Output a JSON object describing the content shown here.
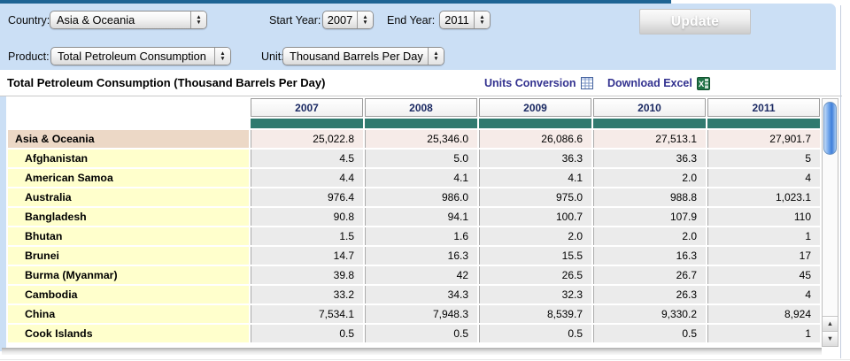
{
  "filters": {
    "country_label": "Country:",
    "country_value": "Asia & Oceania",
    "start_year_label": "Start Year:",
    "start_year_value": "2007",
    "end_year_label": "End Year:",
    "end_year_value": "2011",
    "product_label": "Product:",
    "product_value": "Total Petroleum Consumption",
    "unit_label": "Unit:",
    "unit_value": "Thousand Barrels Per Day",
    "update_label": "Update"
  },
  "report": {
    "title": "Total Petroleum Consumption (Thousand Barrels Per Day)",
    "units_conversion_label": "Units Conversion",
    "download_excel_label": "Download Excel"
  },
  "table": {
    "year_columns": [
      "2007",
      "2008",
      "2009",
      "2010",
      "2011"
    ],
    "rows": [
      {
        "label": "Asia & Oceania",
        "type": "region",
        "values": [
          "25,022.8",
          "25,346.0",
          "26,086.6",
          "27,513.1",
          "27,901.7"
        ]
      },
      {
        "label": "Afghanistan",
        "type": "country",
        "values": [
          "4.5",
          "5.0",
          "36.3",
          "36.3",
          "5"
        ]
      },
      {
        "label": "American Samoa",
        "type": "country",
        "values": [
          "4.4",
          "4.1",
          "4.1",
          "2.0",
          "4"
        ]
      },
      {
        "label": "Australia",
        "type": "country",
        "values": [
          "976.4",
          "986.0",
          "975.0",
          "988.8",
          "1,023.1"
        ]
      },
      {
        "label": "Bangladesh",
        "type": "country",
        "values": [
          "90.8",
          "94.1",
          "100.7",
          "107.9",
          "110"
        ]
      },
      {
        "label": "Bhutan",
        "type": "country",
        "values": [
          "1.5",
          "1.6",
          "2.0",
          "2.0",
          "1"
        ]
      },
      {
        "label": "Brunei",
        "type": "country",
        "values": [
          "14.7",
          "16.3",
          "15.5",
          "16.3",
          "17"
        ]
      },
      {
        "label": "Burma (Myanmar)",
        "type": "country",
        "values": [
          "39.8",
          "42",
          "26.5",
          "26.7",
          "45"
        ]
      },
      {
        "label": "Cambodia",
        "type": "country",
        "values": [
          "33.2",
          "34.3",
          "32.3",
          "26.3",
          "4"
        ]
      },
      {
        "label": "China",
        "type": "country",
        "values": [
          "7,534.1",
          "7,948.3",
          "8,539.7",
          "9,330.2",
          "8,924"
        ]
      },
      {
        "label": "Cook Islands",
        "type": "country",
        "values": [
          "0.5",
          "0.5",
          "0.5",
          "0.5",
          "1"
        ]
      }
    ]
  },
  "scrollbar": {
    "up_glyph": "▲",
    "down_glyph": "▼"
  },
  "colors": {
    "topbar": "#1e6494",
    "panel": "#cbdff5",
    "teal": "#2f7a6f",
    "region_label": "#ecd8c6",
    "region_data": "#f6ebe8",
    "country_label": "#ffffcc",
    "country_data": "#ebebeb",
    "link": "#32318f",
    "year_text": "#1b2a63",
    "excel_green": "#1f7245"
  }
}
